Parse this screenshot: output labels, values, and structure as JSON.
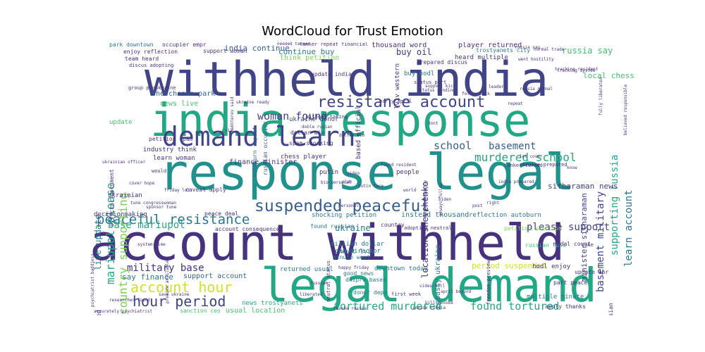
{
  "title": "WordCloud for Trust Emotion",
  "colors": {
    "purple": "#46327e",
    "indigo": "#414487",
    "blue": "#355f8d",
    "teal": "#2a788e",
    "cyan": "#21918c",
    "green": "#22a884",
    "lime": "#44bf70",
    "yellowgreen": "#7ad151",
    "yellow": "#d2e21b"
  },
  "words": [
    {
      "text": "withheld india",
      "color": "indigo"
    },
    {
      "text": "india response",
      "color": "green"
    },
    {
      "text": "response legal",
      "color": "cyan"
    },
    {
      "text": "account withheld",
      "color": "purple"
    },
    {
      "text": "legal demand",
      "color": "green"
    },
    {
      "text": "demand learn",
      "color": "indigo"
    },
    {
      "text": "suspended peaceful",
      "color": "blue"
    },
    {
      "text": "resistance account",
      "color": "indigo"
    },
    {
      "text": "peaceful resistance",
      "color": "teal"
    },
    {
      "text": "woman found",
      "color": "indigo"
    },
    {
      "text": "account hour",
      "color": "yellow"
    },
    {
      "text": "hour period",
      "color": "indigo"
    },
    {
      "text": "tortured murdered",
      "color": "green"
    },
    {
      "text": "found tortured",
      "color": "green"
    },
    {
      "text": "please support",
      "color": "indigo"
    },
    {
      "text": "murdered school",
      "color": "green"
    },
    {
      "text": "school",
      "color": "blue"
    },
    {
      "text": "basement",
      "color": "blue"
    },
    {
      "text": "military base",
      "color": "purple"
    },
    {
      "text": "base mariupol",
      "color": "green"
    },
    {
      "text": "mariupol please",
      "color": "green"
    },
    {
      "text": "country supporting",
      "color": "yellowgreen"
    },
    {
      "text": "india continue",
      "color": "blue"
    },
    {
      "text": "continue buy",
      "color": "teal"
    },
    {
      "text": "buy oil",
      "color": "purple"
    },
    {
      "text": "thousand word",
      "color": "purple"
    },
    {
      "text": "player returned",
      "color": "purple"
    },
    {
      "text": "russia say",
      "color": "lime"
    },
    {
      "text": "local chess",
      "color": "lime"
    },
    {
      "text": "trostyanets city",
      "color": "teal"
    },
    {
      "text": "basement military",
      "color": "indigo"
    },
    {
      "text": "supporting russia",
      "color": "green"
    },
    {
      "text": "learn account",
      "color": "teal"
    },
    {
      "text": "minister sitharaman",
      "color": "indigo"
    },
    {
      "text": "sitharaman news",
      "color": "indigo"
    },
    {
      "text": "period suspended",
      "color": "yellow"
    },
    {
      "text": "say finance",
      "color": "teal"
    },
    {
      "text": "support account",
      "color": "blue"
    },
    {
      "text": "news trostyanets",
      "color": "green"
    },
    {
      "text": "usual location",
      "color": "lime"
    },
    {
      "text": "sanction ceo",
      "color": "lime"
    },
    {
      "text": "ukraine",
      "color": "teal"
    },
    {
      "text": "went lviv",
      "color": "teal"
    },
    {
      "text": "million dollar",
      "color": "teal"
    },
    {
      "text": "ceo director",
      "color": "teal"
    },
    {
      "text": "minute went",
      "color": "teal"
    },
    {
      "text": "returned usual",
      "color": "teal"
    },
    {
      "text": "downtown today",
      "color": "teal"
    },
    {
      "text": "good news",
      "color": "teal"
    },
    {
      "text": "dnipro based",
      "color": "teal"
    },
    {
      "text": "donor depa",
      "color": "teal"
    },
    {
      "text": "instead thousand",
      "color": "teal"
    },
    {
      "text": "shocking petition",
      "color": "teal"
    },
    {
      "text": "reflection autoburn",
      "color": "teal"
    },
    {
      "text": "found russian",
      "color": "teal"
    },
    {
      "text": "finance minister",
      "color": "purple"
    },
    {
      "text": "industry think",
      "color": "purple"
    },
    {
      "text": "learn woman",
      "color": "purple"
    },
    {
      "text": "petition spam",
      "color": "purple"
    },
    {
      "text": "spam shocking",
      "color": "purple"
    },
    {
      "text": "dollar bio",
      "color": "purple"
    },
    {
      "text": "chess player",
      "color": "purple"
    },
    {
      "text": "putin",
      "color": "purple"
    },
    {
      "text": "news live",
      "color": "lime"
    },
    {
      "text": "shevchenko park",
      "color": "blue"
    },
    {
      "text": "park downtown",
      "color": "teal"
    },
    {
      "text": "occupier empr",
      "color": "purple"
    },
    {
      "text": "enjoy reflection",
      "color": "purple"
    },
    {
      "text": "team heard",
      "color": "purple"
    },
    {
      "text": "live update",
      "color": "teal"
    },
    {
      "text": "update",
      "color": "lime"
    },
    {
      "text": "location shevchenko",
      "color": "purple"
    },
    {
      "text": "ukraine donor",
      "color": "indigo"
    },
    {
      "text": "buy hodl",
      "color": "teal"
    },
    {
      "text": "lviv western",
      "color": "purple"
    },
    {
      "text": "based official",
      "color": "purple"
    },
    {
      "text": "embassy ukraine",
      "color": "teal"
    },
    {
      "text": "hodl enjoy",
      "color": "purple"
    },
    {
      "text": "update apr",
      "color": "purple"
    },
    {
      "text": "part peace",
      "color": "purple"
    },
    {
      "text": "multiple minute",
      "color": "teal"
    },
    {
      "text": "apply thanks",
      "color": "purple"
    },
    {
      "text": "liberated russian",
      "color": "purple"
    },
    {
      "text": "city liberated",
      "color": "purple"
    },
    {
      "text": "peace deal",
      "color": "purple"
    },
    {
      "text": "russian loss",
      "color": "lime"
    },
    {
      "text": "petition sanction",
      "color": "yellowgreen"
    },
    {
      "text": "medal count",
      "color": "purple"
    },
    {
      "text": "heard multiple",
      "color": "purple"
    },
    {
      "text": "prepared discus",
      "color": "purple"
    },
    {
      "text": "tanker repeat financial",
      "color": "purple"
    },
    {
      "text": "support woman",
      "color": "purple"
    },
    {
      "text": "status part",
      "color": "purple"
    },
    {
      "text": "update india",
      "color": "purple"
    },
    {
      "text": "people",
      "color": "purple"
    },
    {
      "text": "ukrainian",
      "color": "purple"
    },
    {
      "text": "caveat apply",
      "color": "purple"
    },
    {
      "text": "account consequence",
      "color": "purple"
    },
    {
      "text": "neutral status",
      "color": "purple"
    },
    {
      "text": "adopting neutral",
      "color": "purple"
    },
    {
      "text": "country",
      "color": "purple"
    },
    {
      "text": "went hostility",
      "color": "purple"
    },
    {
      "text": "tracking system",
      "color": "purple"
    },
    {
      "text": "without taking",
      "color": "purple"
    },
    {
      "text": "follow back",
      "color": "purple"
    },
    {
      "text": "russia normal",
      "color": "purple"
    },
    {
      "text": "think petition",
      "color": "yellowgreen"
    },
    {
      "text": "tanker turned",
      "color": "purple"
    },
    {
      "text": "ukraine prepared",
      "color": "purple"
    },
    {
      "text": "freedom preview",
      "color": "purple"
    },
    {
      "text": "russia say",
      "color": "purple"
    },
    {
      "text": "india prepared",
      "color": "purple"
    },
    {
      "text": "found resident",
      "color": "purple"
    },
    {
      "text": "early april",
      "color": "purple"
    },
    {
      "text": "status pending",
      "color": "purple"
    },
    {
      "text": "personal",
      "color": "purple"
    },
    {
      "text": "video",
      "color": "purple"
    },
    {
      "text": "putin face",
      "color": "purple"
    },
    {
      "text": "world",
      "color": "purple"
    },
    {
      "text": "biden",
      "color": "purple"
    },
    {
      "text": "right",
      "color": "purple"
    },
    {
      "text": "take",
      "color": "purple"
    },
    {
      "text": "know",
      "color": "purple"
    },
    {
      "text": "via",
      "color": "purple"
    },
    {
      "text": "dont",
      "color": "purple"
    },
    {
      "text": "would",
      "color": "purple"
    },
    {
      "text": "leader",
      "color": "purple"
    },
    {
      "text": "repeat",
      "color": "purple"
    },
    {
      "text": "post",
      "color": "purple"
    },
    {
      "text": "plan",
      "color": "purple"
    },
    {
      "text": "russian occupier",
      "color": "blue"
    },
    {
      "text": "autoburn repeat",
      "color": "blue"
    },
    {
      "text": "bakhterev said",
      "color": "purple"
    },
    {
      "text": "doble rusian",
      "color": "purple"
    },
    {
      "text": "strict urgently",
      "color": "purple"
    },
    {
      "text": "always follow",
      "color": "purple"
    },
    {
      "text": "psychiatrist baddiess",
      "color": "purple"
    },
    {
      "text": "official document",
      "color": "purple"
    },
    {
      "text": "discus adopting",
      "color": "purple"
    },
    {
      "text": "group proukraine",
      "color": "purple"
    },
    {
      "text": "ukraine ready",
      "color": "purple"
    },
    {
      "text": "needed tanker",
      "color": "purple"
    },
    {
      "text": "cover hope",
      "color": "purple"
    },
    {
      "text": "bio personal",
      "color": "purple"
    },
    {
      "text": "ukrainian officer",
      "color": "purple"
    },
    {
      "text": "fully liberated",
      "color": "purple"
    },
    {
      "text": "system time",
      "color": "purple"
    },
    {
      "text": "preview available",
      "color": "purple"
    },
    {
      "text": "decisionmaking",
      "color": "purple"
    },
    {
      "text": "researcher found",
      "color": "purple"
    },
    {
      "text": "accurately psychiatrist",
      "color": "purple"
    },
    {
      "text": "save ukraine",
      "color": "purple"
    },
    {
      "text": "happy friday",
      "color": "purple"
    },
    {
      "text": "tune congresswoman",
      "color": "purple"
    },
    {
      "text": "friday lot",
      "color": "purple"
    },
    {
      "text": "april beyond",
      "color": "purple"
    },
    {
      "text": "liberated",
      "color": "purple"
    },
    {
      "text": "support kick",
      "color": "purple"
    },
    {
      "text": "believed responsible",
      "color": "purple"
    },
    {
      "text": "tracking resident",
      "color": "purple"
    },
    {
      "text": "russian",
      "color": "purple"
    },
    {
      "text": "first week",
      "color": "purple"
    },
    {
      "text": "invade russia",
      "color": "purple"
    },
    {
      "text": "bill revoke",
      "color": "purple"
    },
    {
      "text": "lot cover",
      "color": "purple"
    },
    {
      "text": "video bill",
      "color": "purple"
    },
    {
      "text": "normal trade",
      "color": "purple"
    },
    {
      "text": "dollar bio",
      "color": "purple"
    },
    {
      "text": "sponsor tune",
      "color": "purple"
    },
    {
      "text": "revoke russia",
      "color": "purple"
    }
  ]
}
